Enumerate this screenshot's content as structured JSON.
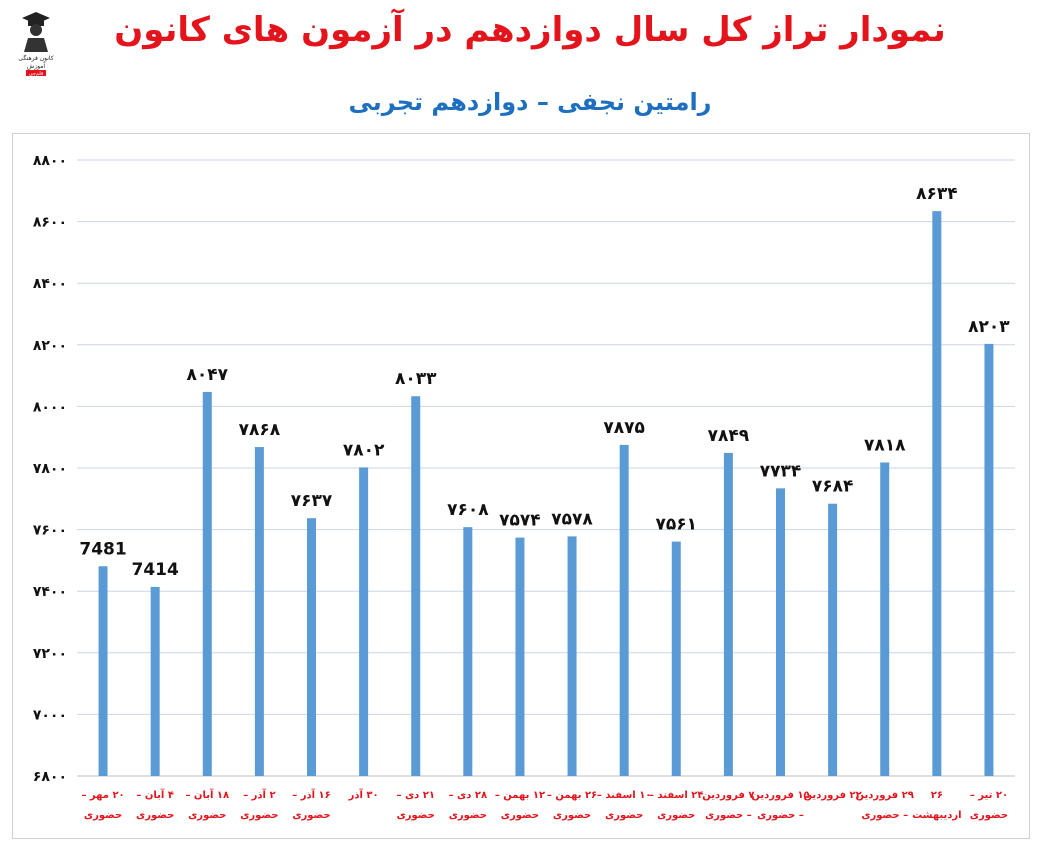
{
  "header": {
    "title": "نمودار تراز کل سال دوازدهم در آزمون های کانون",
    "subtitle": "رامتین نجفی – دوازدهم تجربی"
  },
  "logo": {
    "lines": [
      "کانون",
      "فرهنگی",
      "آموزش",
      "قلم‌چی"
    ]
  },
  "colors": {
    "title": "#e3141b",
    "subtitle": "#1f6fc0",
    "bar": "#5b9bd5",
    "category_text": "#e3141b",
    "gridline": "#c9d6e8"
  },
  "chart_data": {
    "type": "bar",
    "title": "",
    "xlabel": "",
    "ylabel": "",
    "ylim": [
      6800,
      8800
    ],
    "yticks": [
      6800,
      7000,
      7200,
      7400,
      7600,
      7800,
      8000,
      8200,
      8400,
      8600,
      8800
    ],
    "ytick_labels": [
      "۶۸۰۰",
      "۷۰۰۰",
      "۷۲۰۰",
      "۷۴۰۰",
      "۷۶۰۰",
      "۷۸۰۰",
      "۸۰۰۰",
      "۸۲۰۰",
      "۸۴۰۰",
      "۸۶۰۰",
      "۸۸۰۰"
    ],
    "grid": true,
    "categories": [
      [
        "۲۰ مهر –",
        "حضوری"
      ],
      [
        "۴ آبان –",
        "حضوری"
      ],
      [
        "۱۸ آبان –",
        "حضوری"
      ],
      [
        "۲ آذر –",
        "حضوری"
      ],
      [
        "۱۶ آذر –",
        "حضوری"
      ],
      [
        "۳۰ آذر",
        ""
      ],
      [
        "۲۱ دی –",
        "حضوری"
      ],
      [
        "۲۸ دی –",
        "حضوری"
      ],
      [
        "۱۲ بهمن –",
        "حضوری"
      ],
      [
        "۲۶ بهمن –",
        "حضوری"
      ],
      [
        "۱۰ اسفند –",
        "حضوری"
      ],
      [
        "۲۴ اسفند –",
        "حضوری"
      ],
      [
        "۷ فروردین",
        "– حضوری"
      ],
      [
        "۱۵ فروردین",
        "– حضوری"
      ],
      [
        "۲۲ فروردین",
        ""
      ],
      [
        "۲۹ فروردین",
        "– حضوری"
      ],
      [
        "۲۶",
        "اردیبهشت"
      ],
      [
        "۲۰ تیر –",
        "حضوری"
      ]
    ],
    "values": [
      7481,
      7414,
      8047,
      7868,
      7637,
      7802,
      8033,
      7608,
      7574,
      7578,
      7875,
      7561,
      7849,
      7734,
      7684,
      7818,
      8634,
      8203
    ],
    "value_labels": [
      "7481",
      "7414",
      "۸۰۴۷",
      "۷۸۶۸",
      "۷۶۳۷",
      "۷۸۰۲",
      "۸۰۳۳",
      "۷۶۰۸",
      "۷۵۷۴",
      "۷۵۷۸",
      "۷۸۷۵",
      "۷۵۶۱",
      "۷۸۴۹",
      "۷۷۳۴",
      "۷۶۸۴",
      "۷۸۱۸",
      "۸۶۳۴",
      "۸۲۰۳"
    ]
  }
}
